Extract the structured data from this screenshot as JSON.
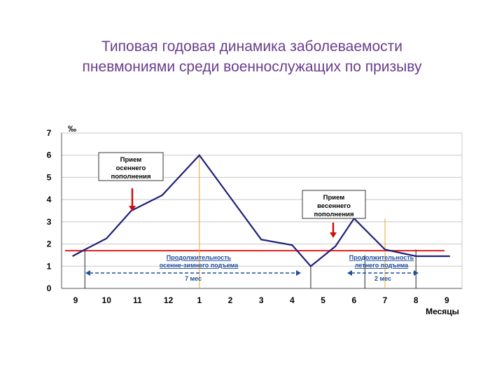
{
  "title_line1": "Типовая годовая динамика заболеваемости",
  "title_line2": "пневмониями среди военнослужащих по призыву",
  "chart_data": {
    "type": "line",
    "ylabel": "‰",
    "xlabel": "Месяцы",
    "ylim": [
      0,
      7
    ],
    "yticks": [
      "0",
      "1",
      "2",
      "3",
      "4",
      "5",
      "6",
      "7"
    ],
    "categories": [
      "9",
      "10",
      "11",
      "12",
      "1",
      "2",
      "3",
      "4",
      "5",
      "6",
      "7",
      "8",
      "9"
    ],
    "x": [
      -0.1,
      0.3,
      1,
      1.8,
      2.8,
      4,
      5,
      6,
      7,
      7.6,
      8.4,
      9,
      10,
      11,
      12.1
    ],
    "values": [
      1.45,
      1.75,
      2.25,
      3.5,
      4.2,
      6.0,
      4.1,
      2.2,
      1.95,
      1.0,
      1.9,
      3.15,
      1.75,
      1.45,
      1.45
    ],
    "threshold": 1.7,
    "threshold_color": "#e02020",
    "line_color": "#1f1f78",
    "grid": true,
    "annotations": {
      "autumn_box": [
        "Прием",
        "осеннего",
        "пополнения"
      ],
      "spring_box": [
        "Прием",
        "весеннего",
        "пополнения"
      ],
      "autumn_rise": [
        "Продолжительность",
        "осенне-зимнего подъема"
      ],
      "summer_rise": [
        "Продолжительность",
        "летнего подъема"
      ],
      "autumn_span": "7 мес",
      "summer_span": "2 мес"
    },
    "colors": {
      "arrow": "#cc1010",
      "peak_marker": "#f0a030",
      "span": "#1f4e9c",
      "grid": "#c8c8c8"
    }
  }
}
